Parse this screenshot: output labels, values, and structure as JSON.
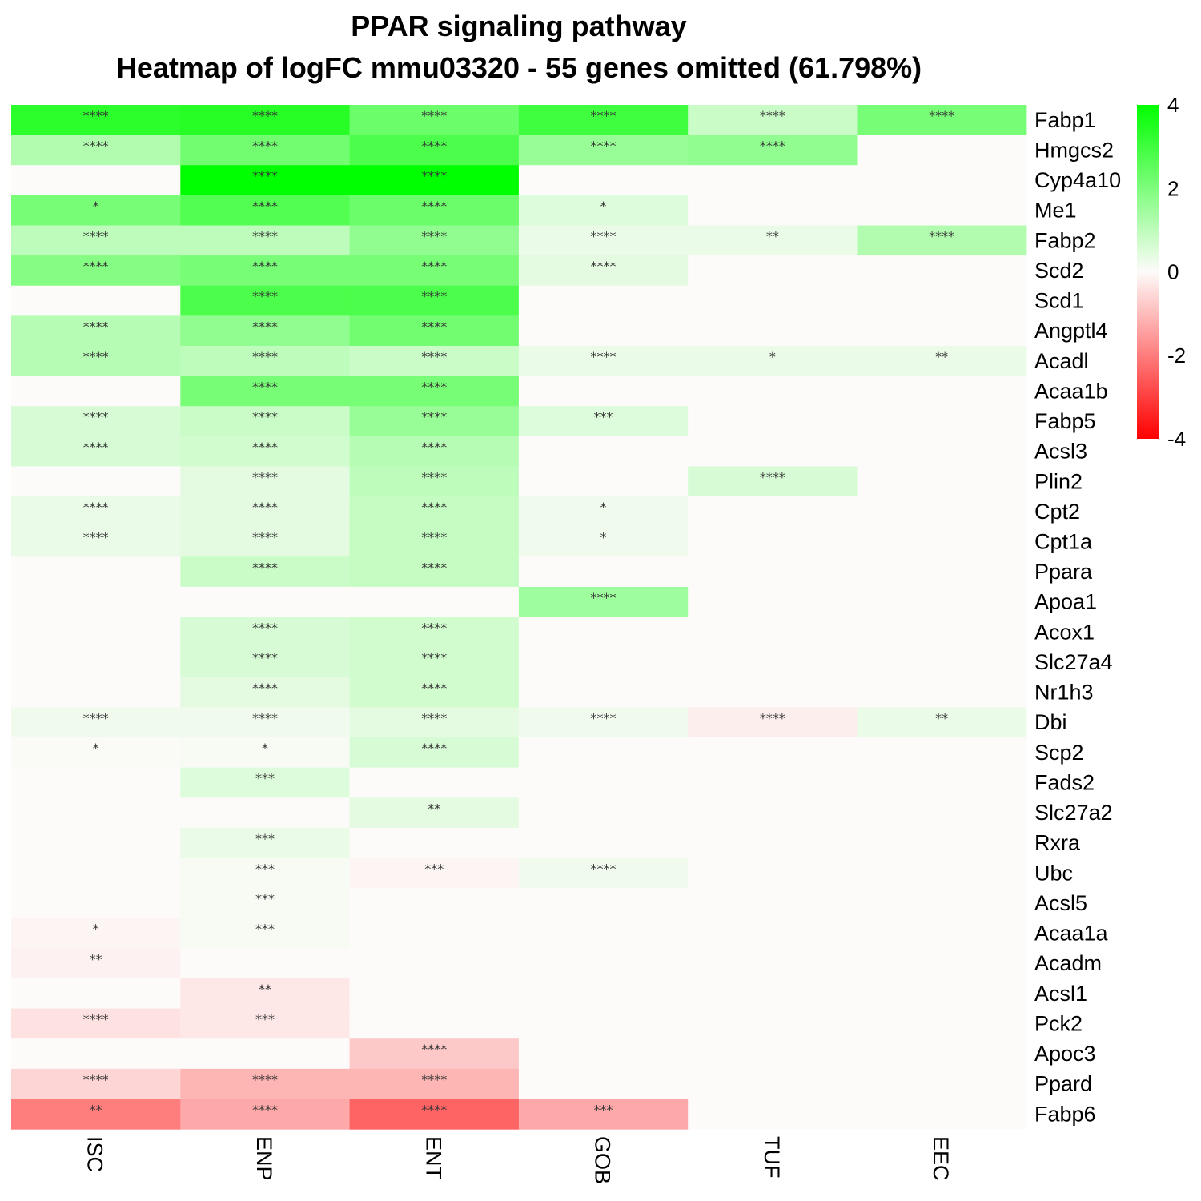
{
  "title": "PPAR signaling pathway",
  "subtitle": "Heatmap of logFC mmu03320 - 55 genes omitted (61.798%)",
  "chart_data": {
    "type": "heatmap",
    "title": "PPAR signaling pathway",
    "subtitle": "Heatmap of logFC mmu03320 - 55 genes omitted (61.798%)",
    "columns": [
      "ISC",
      "ENP",
      "ENT",
      "GOB",
      "TUF",
      "EEC"
    ],
    "rows": [
      "Fabp1",
      "Hmgcs2",
      "Cyp4a10",
      "Me1",
      "Fabp2",
      "Scd2",
      "Scd1",
      "Angptl4",
      "Acadl",
      "Acaa1b",
      "Fabp5",
      "Acsl3",
      "Plin2",
      "Cpt2",
      "Cpt1a",
      "Ppara",
      "Apoa1",
      "Acox1",
      "Slc27a4",
      "Nr1h3",
      "Dbi",
      "Scp2",
      "Fads2",
      "Slc27a2",
      "Rxra",
      "Ubc",
      "Acsl5",
      "Acaa1a",
      "Acadm",
      "Acsl1",
      "Pck2",
      "Apoc3",
      "Ppard",
      "Fabp6"
    ],
    "values": [
      [
        3.3,
        3.4,
        2.3,
        3.0,
        0.8,
        2.1
      ],
      [
        1.2,
        2.2,
        2.8,
        1.6,
        1.7,
        0
      ],
      [
        0,
        4.0,
        4.0,
        0,
        0,
        0
      ],
      [
        2.1,
        2.7,
        2.3,
        0.5,
        0,
        0
      ],
      [
        1.0,
        1.0,
        1.7,
        0.3,
        0.3,
        1.2
      ],
      [
        1.9,
        2.1,
        2.1,
        0.4,
        0,
        0
      ],
      [
        0,
        2.8,
        2.8,
        0,
        0,
        0
      ],
      [
        1.1,
        1.7,
        2.2,
        0,
        0,
        0
      ],
      [
        1.1,
        1.0,
        0.8,
        0.3,
        0.3,
        0.3
      ],
      [
        0,
        2.1,
        2.1,
        0,
        0,
        0
      ],
      [
        0.6,
        0.8,
        1.6,
        0.5,
        0,
        0
      ],
      [
        0.6,
        0.7,
        1.1,
        0,
        0,
        0
      ],
      [
        0,
        0.4,
        1.0,
        0,
        0.6,
        0
      ],
      [
        0.3,
        0.4,
        0.9,
        0.2,
        0,
        0
      ],
      [
        0.3,
        0.4,
        0.9,
        0.2,
        0,
        0
      ],
      [
        0,
        0.8,
        0.9,
        0,
        0,
        0
      ],
      [
        0,
        0,
        0,
        1.5,
        0,
        0
      ],
      [
        0,
        0.6,
        0.7,
        0,
        0,
        0
      ],
      [
        0,
        0.6,
        0.7,
        0,
        0,
        0
      ],
      [
        0,
        0.4,
        0.7,
        0,
        0,
        0
      ],
      [
        0.2,
        0.2,
        0.4,
        0.2,
        -0.2,
        0.3
      ],
      [
        0.05,
        0.1,
        0.6,
        0,
        0,
        0
      ],
      [
        0,
        0.5,
        0,
        0,
        0,
        0
      ],
      [
        0,
        0,
        0.4,
        0,
        0,
        0
      ],
      [
        0,
        0.3,
        0,
        0,
        0,
        0
      ],
      [
        0,
        0.1,
        -0.1,
        0.2,
        0,
        0
      ],
      [
        0,
        0.1,
        0,
        0,
        0,
        0
      ],
      [
        -0.1,
        0.1,
        0,
        0,
        0,
        0
      ],
      [
        -0.15,
        0,
        0,
        0,
        0,
        0
      ],
      [
        0,
        -0.3,
        0,
        0,
        0,
        0
      ],
      [
        -0.4,
        -0.3,
        0,
        0,
        0,
        0
      ],
      [
        0,
        0,
        -0.8,
        0,
        0,
        0
      ],
      [
        -0.6,
        -1.1,
        -1.1,
        0,
        0,
        0
      ],
      [
        -2.0,
        -1.3,
        -2.4,
        -1.3,
        0,
        0
      ]
    ],
    "significance": [
      [
        "****",
        "****",
        "****",
        "****",
        "****",
        "****"
      ],
      [
        "****",
        "****",
        "****",
        "****",
        "****",
        ""
      ],
      [
        "",
        "****",
        "****",
        "",
        "",
        ""
      ],
      [
        "*",
        "****",
        "****",
        "*",
        "",
        ""
      ],
      [
        "****",
        "****",
        "****",
        "****",
        "**",
        "****"
      ],
      [
        "****",
        "****",
        "****",
        "****",
        "",
        ""
      ],
      [
        "",
        "****",
        "****",
        "",
        "",
        ""
      ],
      [
        "****",
        "****",
        "****",
        "",
        "",
        ""
      ],
      [
        "****",
        "****",
        "****",
        "****",
        "*",
        "**"
      ],
      [
        "",
        "****",
        "****",
        "",
        "",
        ""
      ],
      [
        "****",
        "****",
        "****",
        "***",
        "",
        ""
      ],
      [
        "****",
        "****",
        "****",
        "",
        "",
        ""
      ],
      [
        "",
        "****",
        "****",
        "",
        "****",
        ""
      ],
      [
        "****",
        "****",
        "****",
        "*",
        "",
        ""
      ],
      [
        "****",
        "****",
        "****",
        "*",
        "",
        ""
      ],
      [
        "",
        "****",
        "****",
        "",
        "",
        ""
      ],
      [
        "",
        "",
        "",
        "****",
        "",
        ""
      ],
      [
        "",
        "****",
        "****",
        "",
        "",
        ""
      ],
      [
        "",
        "****",
        "****",
        "",
        "",
        ""
      ],
      [
        "",
        "****",
        "****",
        "",
        "",
        ""
      ],
      [
        "****",
        "****",
        "****",
        "****",
        "****",
        "**"
      ],
      [
        "*",
        "*",
        "****",
        "",
        "",
        ""
      ],
      [
        "",
        "***",
        "",
        "",
        "",
        ""
      ],
      [
        "",
        "",
        "**",
        "",
        "",
        ""
      ],
      [
        "",
        "***",
        "",
        "",
        "",
        ""
      ],
      [
        "",
        "***",
        "***",
        "****",
        "",
        ""
      ],
      [
        "",
        "***",
        "",
        "",
        "",
        ""
      ],
      [
        "*",
        "***",
        "",
        "",
        "",
        ""
      ],
      [
        "**",
        "",
        "",
        "",
        "",
        ""
      ],
      [
        "",
        "**",
        "",
        "",
        "",
        ""
      ],
      [
        "****",
        "***",
        "",
        "",
        "",
        ""
      ],
      [
        "",
        "",
        "****",
        "",
        "",
        ""
      ],
      [
        "****",
        "****",
        "****",
        "",
        "",
        ""
      ],
      [
        "**",
        "****",
        "****",
        "***",
        "",
        ""
      ]
    ],
    "color_scale": {
      "min": -4,
      "max": 4,
      "low": "#ff0000",
      "mid": "#fdfbfa",
      "high": "#00ff00"
    },
    "legend": {
      "ticks": [
        "4",
        "2",
        "0",
        "-2",
        "-4"
      ],
      "placement": "right"
    }
  }
}
